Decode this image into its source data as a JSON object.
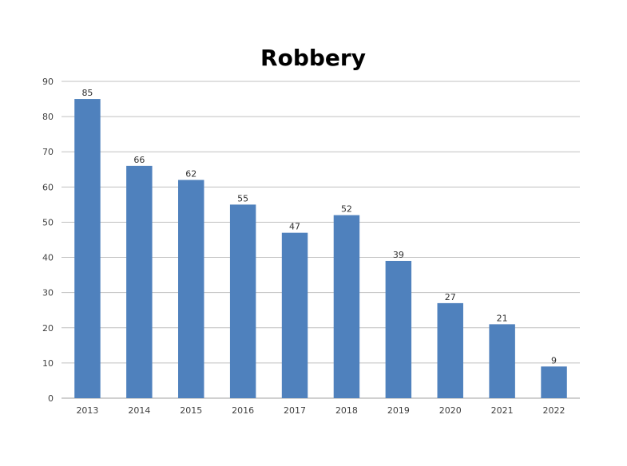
{
  "chart_data": {
    "type": "bar",
    "title": "Robbery",
    "xlabel": "",
    "ylabel": "",
    "categories": [
      "2013",
      "2014",
      "2015",
      "2016",
      "2017",
      "2018",
      "2019",
      "2020",
      "2021",
      "2022"
    ],
    "values": [
      85,
      66,
      62,
      55,
      47,
      52,
      39,
      27,
      21,
      9
    ],
    "ylim": [
      0,
      90
    ],
    "yticks": [
      0,
      10,
      20,
      30,
      40,
      50,
      60,
      70,
      80,
      90
    ],
    "grid": true,
    "legend": "none",
    "bar_color": "#4f81bd"
  }
}
